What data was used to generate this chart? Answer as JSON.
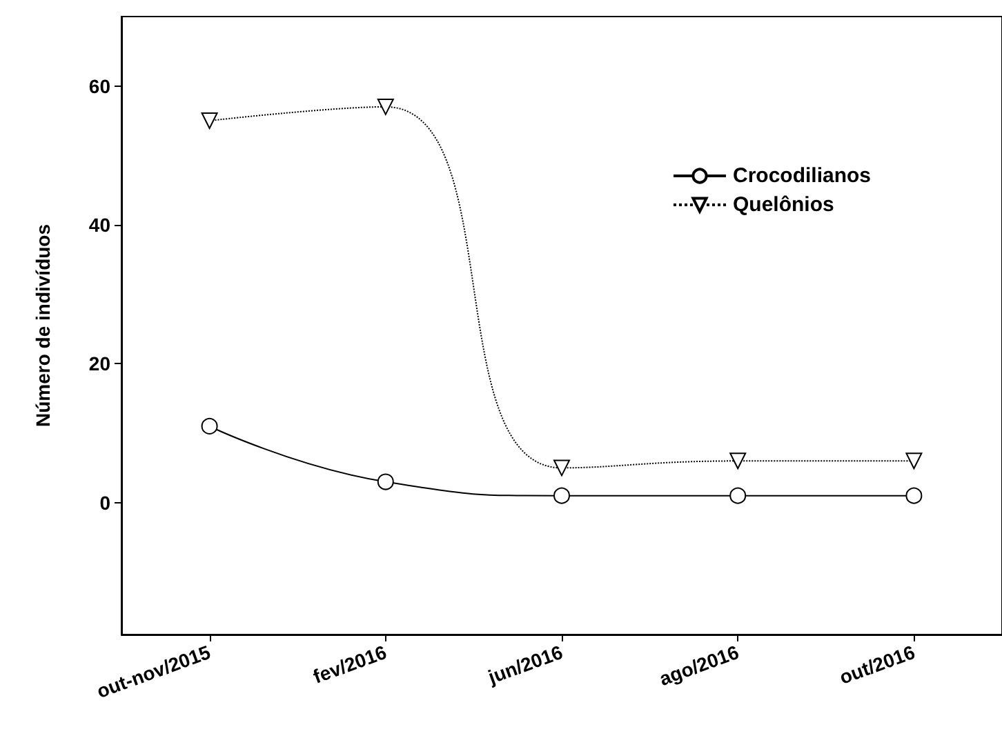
{
  "chart_data": {
    "type": "line",
    "ylabel": "Número de indivíduos",
    "categories": [
      "out-nov/2015",
      "fev/2016",
      "jun/2016",
      "ago/2016",
      "out/2016"
    ],
    "series": [
      {
        "name": "Crocodilianos",
        "color": "#000000",
        "values": [
          11,
          3,
          1,
          1,
          1
        ],
        "marker": "circle",
        "line_style": "solid"
      },
      {
        "name": "Quelônios",
        "color": "#000000",
        "values": [
          55,
          57,
          5,
          6,
          6
        ],
        "marker": "triangle",
        "line_style": "dotted"
      }
    ],
    "ylim": [
      -19,
      70
    ],
    "yticks": [
      0,
      20,
      40,
      60
    ],
    "grid": false,
    "legend": "top right"
  }
}
